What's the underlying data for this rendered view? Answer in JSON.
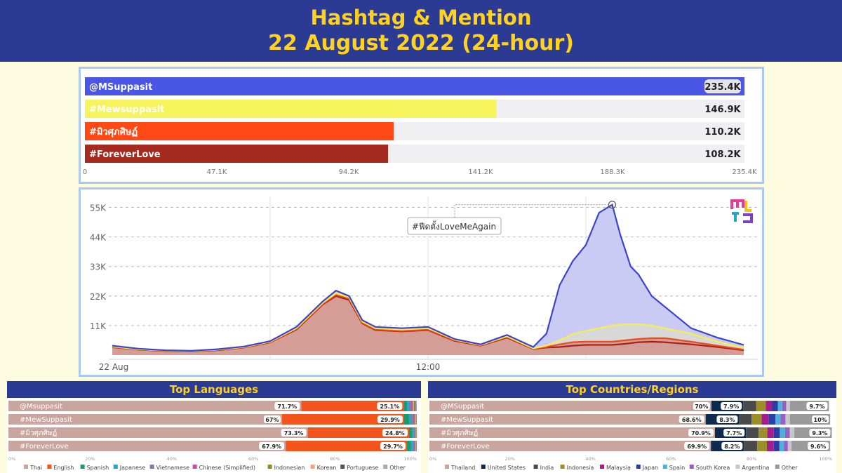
{
  "header": {
    "title_line1": "Hashtag & Mention",
    "title_line2": "22 August 2022 (24-hour)"
  },
  "colors": {
    "header_bg": "#2b3a92",
    "title_yellow": "#ffd21f",
    "page_bg": "#fdfbe0"
  },
  "chart_data": [
    {
      "type": "bar",
      "orientation": "horizontal",
      "categories": [
        "@MSuppasit",
        "#Mewsuppasit",
        "#มิวศุภศิษฏ์",
        "#ForeverLove"
      ],
      "values": [
        235.4,
        146.9,
        110.2,
        108.2
      ],
      "value_labels": [
        "235.4K",
        "146.9K",
        "110.2K",
        "108.2K"
      ],
      "colors": [
        "#4a56e6",
        "#f7f35c",
        "#ff4a17",
        "#a52a20"
      ],
      "xlim": [
        0,
        235.4
      ],
      "xticks": [
        "0",
        "47.1K",
        "94.2K",
        "141.2K",
        "188.3K",
        "235.4K"
      ]
    },
    {
      "type": "area",
      "x_range_hours": [
        0,
        24
      ],
      "xticks": [
        {
          "x": 0,
          "label": "22 Aug"
        },
        {
          "x": 12,
          "label": "12:00"
        }
      ],
      "yticks": [
        "11K",
        "22K",
        "33K",
        "44K",
        "55K"
      ],
      "ylim": [
        0,
        58
      ],
      "annotation": "#ฟีดตั้งLoveMeAgain",
      "grid": true,
      "series": [
        {
          "color": "#3b44c9",
          "fill": "#c9cbf4",
          "x": [
            0,
            1,
            2,
            3,
            4,
            5,
            6,
            7,
            8,
            8.5,
            9,
            9.5,
            10,
            11,
            12,
            13,
            14,
            15,
            16,
            16.5,
            17,
            17.5,
            18,
            18.5,
            19,
            19.3,
            19.7,
            20,
            20.5,
            21,
            22,
            23,
            24
          ],
          "values": [
            3.5,
            2.4,
            1.8,
            1.6,
            2.2,
            3.2,
            5.2,
            10.5,
            20,
            24,
            22,
            13,
            10.5,
            10,
            10.5,
            6,
            4,
            7.5,
            3,
            8,
            26,
            35,
            41,
            53,
            56,
            45,
            33,
            30,
            22,
            18,
            10,
            6.5,
            3.8
          ]
        },
        {
          "color": "#f5ed55",
          "fill": "#d8d8d8",
          "x": [
            0,
            1,
            2,
            3,
            4,
            5,
            6,
            7,
            8,
            8.5,
            9,
            9.5,
            10,
            11,
            12,
            13,
            14,
            15,
            16,
            16.5,
            17,
            17.5,
            18,
            18.5,
            19,
            19.5,
            20,
            20.5,
            21,
            22,
            23,
            24
          ],
          "values": [
            3.2,
            2.2,
            1.7,
            1.5,
            2,
            3,
            5,
            10,
            19.5,
            23,
            21.5,
            12.5,
            10,
            9.5,
            10,
            5.8,
            3.8,
            7,
            2.5,
            3.5,
            5.5,
            7.8,
            9,
            10,
            11,
            11.5,
            11.5,
            11,
            10,
            8,
            5,
            2.8
          ]
        },
        {
          "color": "#f04a1a",
          "fill": "#d49e96",
          "x": [
            0,
            1,
            2,
            3,
            4,
            5,
            6,
            7,
            8,
            8.5,
            9,
            9.5,
            10,
            11,
            12,
            13,
            14,
            15,
            16,
            16.5,
            17,
            17.5,
            18,
            18.5,
            19,
            19.5,
            20,
            20.5,
            21,
            22,
            23,
            24
          ],
          "values": [
            3,
            2.1,
            1.6,
            1.5,
            1.9,
            2.9,
            4.8,
            9.8,
            19,
            22.5,
            21,
            12,
            9.5,
            9,
            9.5,
            5.5,
            3.6,
            6.8,
            2.4,
            3,
            4,
            4.8,
            5,
            5,
            5,
            5.5,
            6,
            6.3,
            6.3,
            5,
            3.5,
            2
          ]
        },
        {
          "color": "#a3231d",
          "fill": "#d49e96",
          "x": [
            0,
            1,
            2,
            3,
            4,
            5,
            6,
            7,
            8,
            8.5,
            9,
            9.5,
            10,
            11,
            12,
            13,
            14,
            15,
            16,
            16.5,
            17,
            17.5,
            18,
            18.5,
            19,
            19.5,
            20,
            20.5,
            21,
            22,
            23,
            24
          ],
          "values": [
            2.9,
            2,
            1.5,
            1.4,
            1.8,
            2.8,
            4.7,
            9.5,
            18.8,
            22,
            20.5,
            11.8,
            9.3,
            8.8,
            9.3,
            5.3,
            3.5,
            6.5,
            2.3,
            2.8,
            3,
            3.5,
            3.8,
            3.8,
            3.8,
            4.2,
            4.8,
            5,
            4.8,
            4,
            3,
            1.8
          ]
        }
      ]
    },
    {
      "type": "bar",
      "stacked": true,
      "title": "Top Languages",
      "categories": [
        "@Msuppasit",
        "#MewSuppasit",
        "#มิวศุภศิษฏ์",
        "#ForeverLove"
      ],
      "legend": [
        "Thai",
        "English",
        "Spanish",
        "Japanese",
        "Vietnamese",
        "Chinese (Simplified)",
        "Indonesian",
        "Korean",
        "Portuguese",
        "Other"
      ],
      "colors": [
        "#c9a59e",
        "#f2541b",
        "#1b9a6c",
        "#2aa3c7",
        "#7b7ba6",
        "#c64ba6",
        "#8f8a2a",
        "#f4a57c",
        "#555555",
        "#aaaaaa"
      ],
      "rows": [
        {
          "values": [
            71.7,
            25.1,
            0.8,
            0.5,
            0.4,
            0.3,
            0.3,
            0.3,
            0.3,
            0.3
          ],
          "labels": [
            "71.7%",
            "25.1%"
          ]
        },
        {
          "values": [
            67,
            29.9,
            1.2,
            0.6,
            0.4,
            0.3,
            0.2,
            0.2,
            0.1,
            0.1
          ],
          "labels": [
            "67%",
            "29.9%"
          ]
        },
        {
          "values": [
            73.3,
            24.8,
            0.7,
            0.4,
            0.3,
            0.2,
            0.1,
            0.1,
            0.05,
            0.05
          ],
          "labels": [
            "73.3%",
            "24.8%"
          ]
        },
        {
          "values": [
            67.9,
            29.7,
            1.0,
            0.5,
            0.3,
            0.2,
            0.1,
            0.1,
            0.1,
            0.1
          ],
          "labels": [
            "67.9%",
            "29.7%"
          ]
        }
      ],
      "xticks": [
        "0%",
        "20%",
        "40%",
        "60%",
        "80%",
        "100%"
      ]
    },
    {
      "type": "bar",
      "stacked": true,
      "title": "Top Countries/Regions",
      "categories": [
        "@MSuppasit",
        "#MewSuppasit",
        "#มิวศุภศิษฏ์",
        "#ForeverLove"
      ],
      "legend": [
        "Thailand",
        "United States",
        "India",
        "Indonesia",
        "Malaysia",
        "Japan",
        "Spain",
        "South Korea",
        "Argentina",
        "Other"
      ],
      "colors": [
        "#c9a59e",
        "#0e2b4f",
        "#4a4a4a",
        "#9c8f2a",
        "#a51c8f",
        "#2a3fa5",
        "#4fb0d8",
        "#9a5fc4",
        "#c8c8c8",
        "#9a9a9a"
      ],
      "rows": [
        {
          "values": [
            70,
            7.9,
            3.2,
            2.4,
            1.6,
            1.4,
            1.1,
            1.0,
            0.9,
            9.7
          ],
          "labels": [
            "70%",
            "7.9%",
            "9.7%"
          ]
        },
        {
          "values": [
            68.6,
            8.3,
            3.1,
            2.5,
            1.8,
            1.6,
            1.3,
            1.2,
            1.1,
            10
          ],
          "labels": [
            "68.6%",
            "8.3%",
            "10%"
          ]
        },
        {
          "values": [
            70.9,
            7.7,
            3.1,
            2.2,
            1.6,
            1.5,
            1.3,
            1.2,
            1.1,
            9.3
          ],
          "labels": [
            "70.9%",
            "7.7%",
            "9.3%"
          ]
        },
        {
          "values": [
            69.9,
            8.2,
            3.3,
            2.4,
            1.7,
            1.4,
            1.1,
            1.0,
            0.9,
            9.6
          ],
          "labels": [
            "69.9%",
            "8.2%",
            "9.6%"
          ]
        }
      ],
      "xticks": [
        "0%",
        "20%",
        "40%",
        "60%",
        "80%",
        "100%"
      ]
    }
  ]
}
